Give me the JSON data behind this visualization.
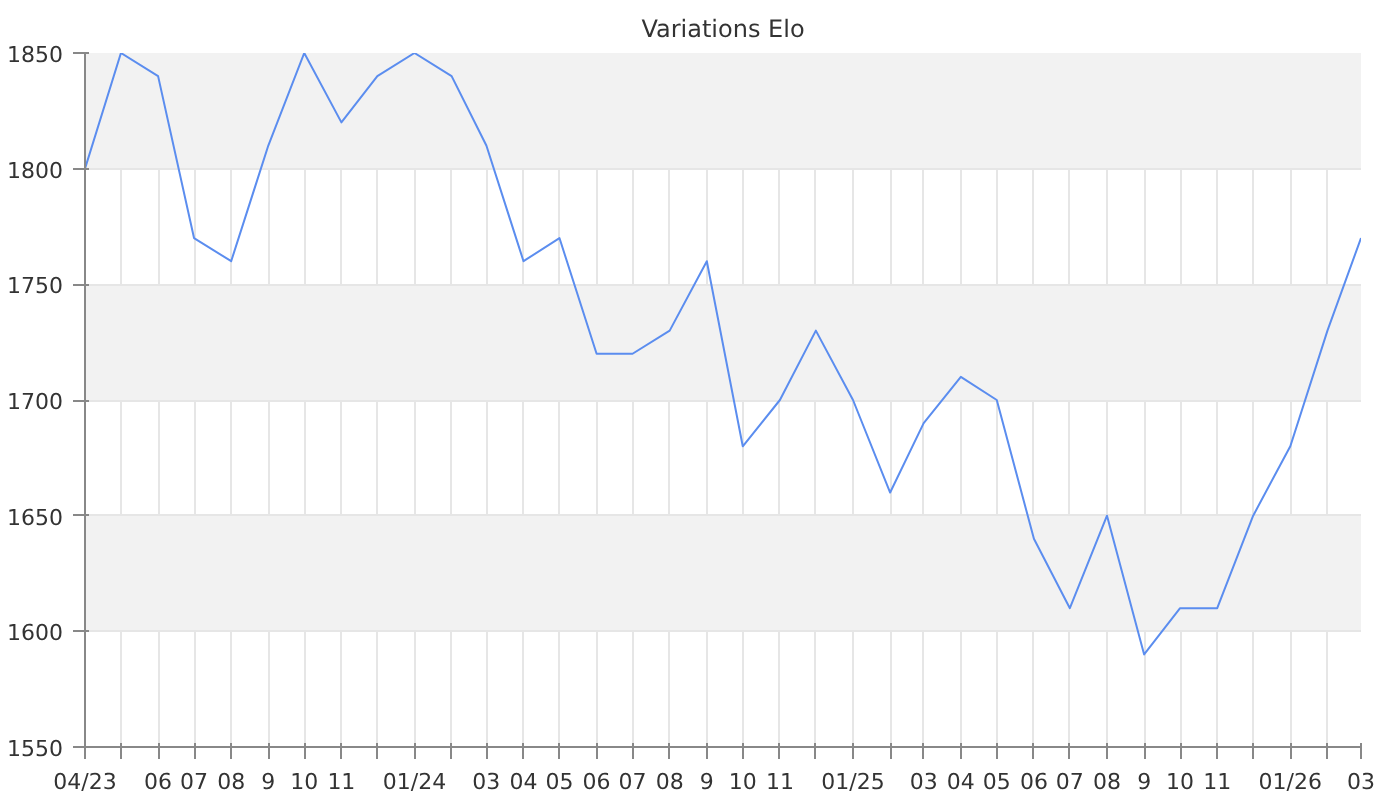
{
  "chart_data": {
    "type": "line",
    "title": "Variations Elo",
    "x": [
      "2023-04",
      "2023-05",
      "2023-06",
      "2023-07",
      "2023-08",
      "2023-09",
      "2023-10",
      "2023-11",
      "2023-12",
      "2024-01",
      "2024-02",
      "2024-03",
      "2024-04",
      "2024-05",
      "2024-06",
      "2024-07",
      "2024-08",
      "2024-09",
      "2024-10",
      "2024-11",
      "2024-12",
      "2025-01",
      "2025-02",
      "2025-03",
      "2025-04",
      "2025-05",
      "2025-06",
      "2025-07",
      "2025-08",
      "2025-09",
      "2025-10",
      "2025-11",
      "2025-12",
      "2026-01",
      "2026-02",
      "2026-03"
    ],
    "series": [
      {
        "color": "#5b8def",
        "values": [
          1800,
          1850,
          1840,
          1770,
          1760,
          1810,
          1850,
          1820,
          1840,
          1850,
          1840,
          1810,
          1760,
          1770,
          1720,
          1720,
          1730,
          1760,
          1680,
          1700,
          1730,
          1700,
          1660,
          1690,
          1710,
          1700,
          1640,
          1610,
          1650,
          1590,
          1610,
          1610,
          1650,
          1680,
          1730,
          1770
        ]
      }
    ],
    "xlim": [
      "2023-04",
      "2026-03"
    ],
    "xticks": [
      {
        "value": "2023-04",
        "label": "04/23"
      },
      {
        "value": "2023-05",
        "label": null
      },
      {
        "value": "2023-06",
        "label": "06"
      },
      {
        "value": "2023-07",
        "label": "07"
      },
      {
        "value": "2023-08",
        "label": "08"
      },
      {
        "value": "2023-09",
        "label": "9"
      },
      {
        "value": "2023-10",
        "label": "10"
      },
      {
        "value": "2023-11",
        "label": "11"
      },
      {
        "value": "2023-12",
        "label": null
      },
      {
        "value": "2024-01",
        "label": "01/24"
      },
      {
        "value": "2024-02",
        "label": null
      },
      {
        "value": "2024-03",
        "label": "03"
      },
      {
        "value": "2024-04",
        "label": "04"
      },
      {
        "value": "2024-05",
        "label": "05"
      },
      {
        "value": "2024-06",
        "label": "06"
      },
      {
        "value": "2024-07",
        "label": "07"
      },
      {
        "value": "2024-08",
        "label": "08"
      },
      {
        "value": "2024-09",
        "label": "9"
      },
      {
        "value": "2024-10",
        "label": "10"
      },
      {
        "value": "2024-11",
        "label": "11"
      },
      {
        "value": "2024-12",
        "label": null
      },
      {
        "value": "2025-01",
        "label": "01/25"
      },
      {
        "value": "2025-02",
        "label": null
      },
      {
        "value": "2025-03",
        "label": "03"
      },
      {
        "value": "2025-04",
        "label": "04"
      },
      {
        "value": "2025-05",
        "label": "05"
      },
      {
        "value": "2025-06",
        "label": "06"
      },
      {
        "value": "2025-07",
        "label": "07"
      },
      {
        "value": "2025-08",
        "label": "08"
      },
      {
        "value": "2025-09",
        "label": "9"
      },
      {
        "value": "2025-10",
        "label": "10"
      },
      {
        "value": "2025-11",
        "label": "11"
      },
      {
        "value": "2025-12",
        "label": null
      },
      {
        "value": "2026-01",
        "label": "01/26"
      },
      {
        "value": "2026-02",
        "label": null
      },
      {
        "value": "2026-03",
        "label": "03"
      }
    ],
    "ylim": [
      1550,
      1850
    ],
    "yticks": [
      1550,
      1600,
      1650,
      1700,
      1750,
      1800,
      1850
    ],
    "grid": true,
    "marker": "none",
    "line_style": "solid"
  }
}
